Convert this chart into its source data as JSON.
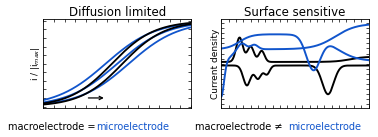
{
  "title_left": "Diffusion limited",
  "title_right": "Surface sensitive",
  "ylabel_left": "i / |i$_{max}$|",
  "ylabel_right": "Current density",
  "caption_left_black": "macroelectrode = ",
  "caption_left_blue": "microelectrode",
  "caption_right_black": "macroelectrode ≠ ",
  "caption_right_blue": "microelectrode",
  "bg_color": "#ffffff",
  "black_color": "#000000",
  "blue_color": "#1155cc",
  "title_fontsize": 8.5,
  "caption_fontsize": 7.0,
  "axis_label_fontsize": 6.5
}
